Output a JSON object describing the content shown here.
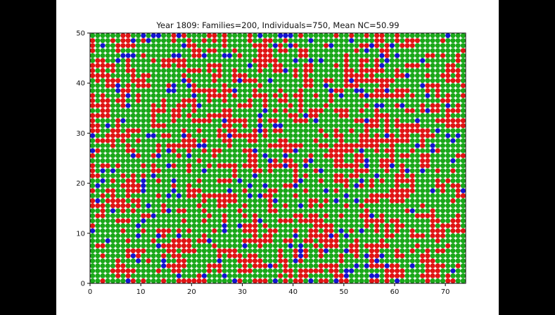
{
  "chart_data": {
    "type": "scatter",
    "title": "Year 1809: Families=200, Individuals=750, Mean NC=50.99",
    "xlabel": "",
    "ylabel": "",
    "xlim": [
      0,
      74
    ],
    "ylim": [
      0,
      50
    ],
    "xticks": [
      0,
      10,
      20,
      30,
      40,
      50,
      60,
      70
    ],
    "yticks": [
      0,
      10,
      20,
      30,
      40,
      50
    ],
    "grid": false,
    "legend": "none",
    "grid_points": {
      "nx": 74,
      "ny": 50,
      "x_start": 0.5,
      "y_start": 0.5,
      "step": 1
    },
    "categories": [
      {
        "name": "green",
        "color": "#1aa81a",
        "approx_share": 0.62
      },
      {
        "name": "red",
        "color": "#e01414",
        "approx_share": 0.33
      },
      {
        "name": "blue",
        "color": "#1414d0",
        "approx_share": 0.05
      }
    ]
  }
}
